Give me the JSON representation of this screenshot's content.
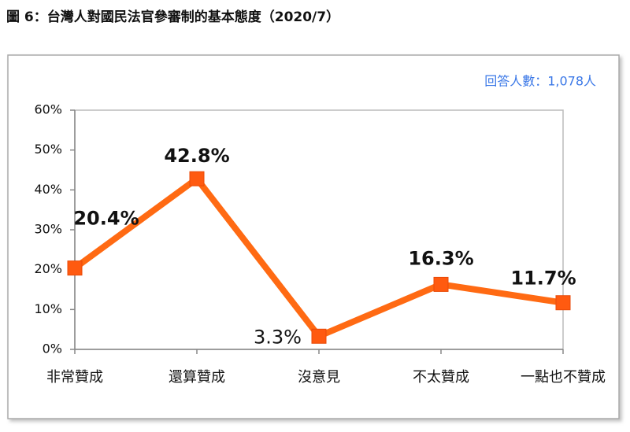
{
  "chart_data": {
    "type": "line",
    "title": "圖 6：台灣人對國民法官參審制的基本態度（2020/7）",
    "annotation": "回答人數：1,078人",
    "categories": [
      "非常贊成",
      "還算贊成",
      "沒意見",
      "不太贊成",
      "一點也不贊成"
    ],
    "series": [
      {
        "color": "#ff6a13",
        "values": [
          20.4,
          42.8,
          3.3,
          16.3,
          11.7
        ],
        "value_labels": [
          "20.4%",
          "42.8%",
          "3.3%",
          "16.3%",
          "11.7%"
        ]
      }
    ],
    "ylim": [
      0,
      60
    ],
    "yticks": [
      {
        "value": 0,
        "label": "0%"
      },
      {
        "value": 10,
        "label": "10%"
      },
      {
        "value": 20,
        "label": "20%"
      },
      {
        "value": 30,
        "label": "30%"
      },
      {
        "value": 40,
        "label": "40%"
      },
      {
        "value": 50,
        "label": "50%"
      },
      {
        "value": 60,
        "label": "60%"
      }
    ]
  }
}
